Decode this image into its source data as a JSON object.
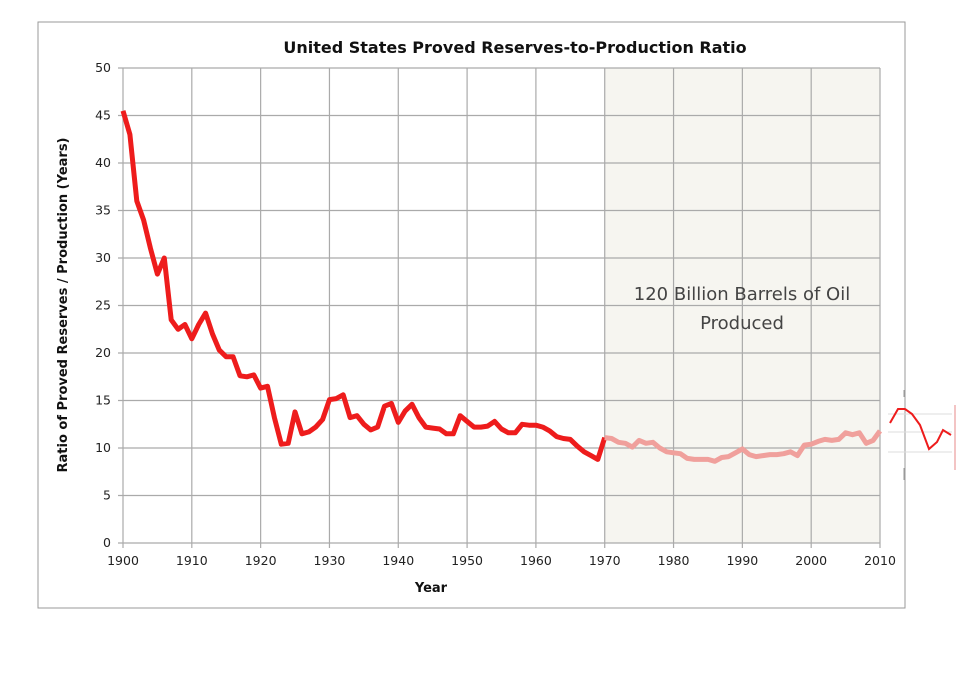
{
  "chart_data": {
    "type": "line",
    "title": "United States Proved Reserves-to-Production Ratio",
    "xlabel": "Year",
    "ylabel": "Ratio of Proved Reserves / Production (Years)",
    "xlim": [
      1900,
      2010
    ],
    "ylim": [
      0,
      50
    ],
    "xticks": [
      1900,
      1910,
      1920,
      1930,
      1940,
      1950,
      1960,
      1970,
      1980,
      1990,
      2000,
      2010
    ],
    "yticks": [
      0,
      5,
      10,
      15,
      20,
      25,
      30,
      35,
      40,
      45,
      50
    ],
    "grid": true,
    "shaded_region": {
      "x": [
        1970,
        2010
      ],
      "color": "#f6f5f0"
    },
    "annotation": {
      "line1": "120 Billion Barrels of Oil",
      "line2": "Produced"
    },
    "colors": {
      "line": "#ee1c1c",
      "line_after_1970": "#f0a09c"
    },
    "start_year": 1900,
    "values": [
      45.5,
      43,
      36,
      34,
      31,
      28.3,
      30,
      23.5,
      22.5,
      23,
      21.5,
      23,
      24.2,
      22,
      20.3,
      19.6,
      19.6,
      17.6,
      17.5,
      17.7,
      16.3,
      16.5,
      13.2,
      10.4,
      10.5,
      13.8,
      11.5,
      11.7,
      12.2,
      13,
      15.1,
      15.2,
      15.6,
      13.2,
      13.4,
      12.5,
      11.9,
      12.2,
      14.4,
      14.7,
      12.7,
      13.9,
      14.6,
      13.2,
      12.2,
      12.1,
      12,
      11.5,
      11.5,
      13.4,
      12.8,
      12.2,
      12.2,
      12.3,
      12.8,
      12,
      11.6,
      11.6,
      12.5,
      12.4,
      12.4,
      12.2,
      11.8,
      11.2,
      11,
      10.9,
      10.2,
      9.6,
      9.2,
      8.8,
      11.1,
      11,
      10.6,
      10.5,
      10.1,
      10.8,
      10.5,
      10.6,
      10,
      9.6,
      9.5,
      9.4,
      8.9,
      8.8,
      8.8,
      8.8,
      8.6,
      9,
      9.1,
      9.5,
      9.9,
      9.3,
      9.1,
      9.2,
      9.3,
      9.3,
      9.4,
      9.6,
      9.2,
      10.3,
      10.4,
      10.7,
      10.9,
      10.8,
      10.9,
      11.6,
      11.4,
      11.6,
      10.5,
      10.8,
      11.8
    ]
  }
}
